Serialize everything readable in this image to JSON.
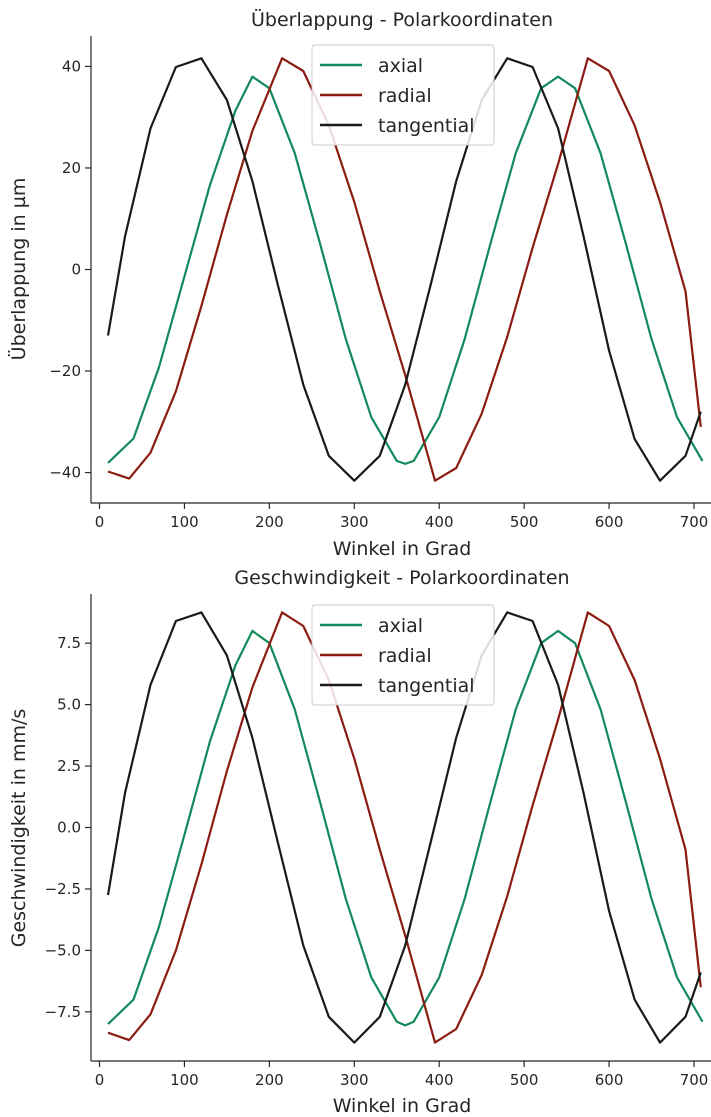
{
  "chart_data": [
    {
      "type": "line",
      "title": "Überlappung - Polarkoordinaten",
      "xlabel": "Winkel in Grad",
      "ylabel": "Überlappung in µm",
      "xlim": [
        -10,
        720
      ],
      "ylim": [
        -46,
        46
      ],
      "xticks": [
        0,
        100,
        200,
        300,
        400,
        500,
        600,
        700
      ],
      "xtick_labels": [
        "0",
        "100",
        "200",
        "300",
        "400",
        "500",
        "600",
        "700"
      ],
      "yticks": [
        -40,
        -20,
        0,
        20,
        40
      ],
      "ytick_labels": [
        "−40",
        "−20",
        "0",
        "20",
        "40"
      ],
      "grid": false,
      "legend_position": "top-center",
      "series": [
        {
          "name": "axial",
          "color": "#138a5a",
          "x": [
            10,
            40,
            70,
            100,
            130,
            160,
            180,
            200,
            230,
            260,
            290,
            320,
            350,
            360,
            370,
            400,
            430,
            460,
            490,
            520,
            540,
            560,
            590,
            620,
            650,
            680,
            710
          ],
          "y": [
            -38.1,
            -33.3,
            -19.3,
            -1.4,
            16.6,
            31.3,
            38.0,
            35.7,
            22.9,
            4.9,
            -13.7,
            -29.1,
            -37.7,
            -38.3,
            -37.7,
            -29.1,
            -13.7,
            4.9,
            22.9,
            35.7,
            38.0,
            35.7,
            22.9,
            4.9,
            -13.7,
            -29.1,
            -37.7
          ]
        },
        {
          "name": "radial",
          "color": "#8b1c12",
          "x": [
            10,
            35,
            60,
            90,
            120,
            150,
            180,
            215,
            240,
            270,
            300,
            330,
            360,
            395,
            420,
            450,
            480,
            510,
            540,
            575,
            600,
            630,
            660,
            690,
            708
          ],
          "y": [
            -39.8,
            -41.2,
            -36.1,
            -24.0,
            -7.2,
            10.8,
            27.3,
            41.6,
            39.1,
            28.4,
            13.3,
            -4.3,
            -20.8,
            -41.6,
            -39.1,
            -28.4,
            -13.3,
            4.3,
            20.8,
            41.6,
            39.1,
            28.4,
            13.3,
            -4.3,
            -31.0
          ]
        },
        {
          "name": "tangential",
          "color": "#1a1a1a",
          "x": [
            10,
            30,
            60,
            90,
            120,
            150,
            180,
            210,
            240,
            270,
            300,
            330,
            360,
            390,
            420,
            450,
            480,
            510,
            540,
            570,
            600,
            630,
            660,
            690,
            708
          ],
          "y": [
            -13.0,
            6.5,
            27.8,
            39.9,
            41.6,
            33.4,
            17.4,
            -3.0,
            -22.7,
            -36.7,
            -41.6,
            -36.7,
            -22.7,
            -3.0,
            17.4,
            33.4,
            41.6,
            39.9,
            27.8,
            6.5,
            -16.0,
            -33.4,
            -41.6,
            -36.7,
            -28.0
          ]
        }
      ]
    },
    {
      "type": "line",
      "title": "Geschwindigkeit - Polarkoordinaten",
      "xlabel": "Winkel in Grad",
      "ylabel": "Geschwindigkeit in mm/s",
      "xlim": [
        -10,
        720
      ],
      "ylim": [
        -9.5,
        9.5
      ],
      "xticks": [
        0,
        100,
        200,
        300,
        400,
        500,
        600,
        700
      ],
      "xtick_labels": [
        "0",
        "100",
        "200",
        "300",
        "400",
        "500",
        "600",
        "700"
      ],
      "yticks": [
        -7.5,
        -5.0,
        -2.5,
        0.0,
        2.5,
        5.0,
        7.5
      ],
      "ytick_labels": [
        "−7.5",
        "−5.0",
        "−2.5",
        "0.0",
        "2.5",
        "5.0",
        "7.5"
      ],
      "grid": false,
      "legend_position": "top-center",
      "series": [
        {
          "name": "axial",
          "color": "#138a5a",
          "x": [
            10,
            40,
            70,
            100,
            130,
            160,
            180,
            200,
            230,
            260,
            290,
            320,
            350,
            360,
            370,
            400,
            430,
            460,
            490,
            520,
            540,
            560,
            590,
            620,
            650,
            680,
            710
          ],
          "y": [
            -8.0,
            -7.0,
            -4.05,
            -0.3,
            3.5,
            6.6,
            8.0,
            7.5,
            4.8,
            1.0,
            -2.9,
            -6.1,
            -7.9,
            -8.05,
            -7.9,
            -6.1,
            -2.9,
            1.0,
            4.8,
            7.5,
            8.0,
            7.5,
            4.8,
            1.0,
            -2.9,
            -6.1,
            -7.9
          ]
        },
        {
          "name": "radial",
          "color": "#8b1c12",
          "x": [
            10,
            35,
            60,
            90,
            120,
            150,
            180,
            215,
            240,
            270,
            300,
            330,
            360,
            395,
            420,
            450,
            480,
            510,
            540,
            575,
            600,
            630,
            660,
            690,
            708
          ],
          "y": [
            -8.35,
            -8.65,
            -7.6,
            -5.0,
            -1.5,
            2.3,
            5.7,
            8.75,
            8.2,
            6.0,
            2.8,
            -0.9,
            -4.4,
            -8.75,
            -8.2,
            -6.0,
            -2.8,
            0.9,
            4.4,
            8.75,
            8.2,
            6.0,
            2.8,
            -0.9,
            -6.5
          ]
        },
        {
          "name": "tangential",
          "color": "#1a1a1a",
          "x": [
            10,
            30,
            60,
            90,
            120,
            150,
            180,
            210,
            240,
            270,
            300,
            330,
            360,
            390,
            420,
            450,
            480,
            510,
            540,
            570,
            600,
            630,
            660,
            690,
            708
          ],
          "y": [
            -2.75,
            1.4,
            5.8,
            8.4,
            8.75,
            7.0,
            3.65,
            -0.6,
            -4.8,
            -7.7,
            -8.75,
            -7.7,
            -4.8,
            -0.6,
            3.65,
            7.0,
            8.75,
            8.4,
            5.8,
            1.4,
            -3.4,
            -7.0,
            -8.75,
            -7.7,
            -5.9
          ]
        }
      ]
    }
  ]
}
